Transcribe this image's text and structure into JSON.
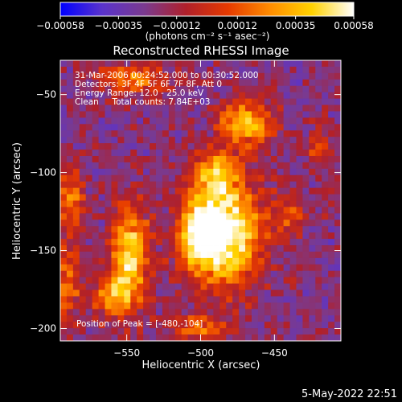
{
  "chart_data": {
    "type": "heatmap",
    "title": "Reconstructed RHESSI Image",
    "xlabel": "Heliocentric X (arcsec)",
    "ylabel": "Heliocentric Y (arcsec)",
    "xlim": [
      -595,
      -405
    ],
    "ylim": [
      -208,
      -28
    ],
    "x_ticks": [
      -550,
      -500,
      -450
    ],
    "y_ticks": [
      -200,
      -150,
      -100,
      -50
    ],
    "colorbar": {
      "label": "(photons cm⁻² s⁻¹ asec⁻²)",
      "range": [
        -0.00058,
        0.00058
      ],
      "tick_labels": [
        "−0.00058",
        "−0.00035",
        "−0.00012",
        "0.00012",
        "0.00035",
        "0.00058"
      ],
      "tick_values": [
        -0.00058,
        -0.00035,
        -0.00012,
        0.00012,
        0.00035,
        0.00058
      ],
      "colormap": [
        "#0000ff",
        "#5a33cc",
        "#7a3a8f",
        "#b0202a",
        "#e63a00",
        "#ff8c00",
        "#ffd200",
        "#ffffff"
      ]
    },
    "annotations": [
      "31-Mar-2006 00:24:52.000 to 00:30:52.000",
      "Detectors: 3F 4F 5F 6F 7F 8F, Att 0",
      "Energy Range: 12.0 - 25.0 keV",
      "Clean     Total counts: 7.84E+03"
    ],
    "peak_label": "Position of Peak = [-480,-104]",
    "peak": [
      -480,
      -104
    ],
    "sources": [
      {
        "x": -482,
        "y": -138,
        "amp": 1.0,
        "sx": 16,
        "sy": 24
      },
      {
        "x": -502,
        "y": -140,
        "amp": 0.85,
        "sx": 10,
        "sy": 16
      },
      {
        "x": -470,
        "y": -68,
        "amp": 0.75,
        "sx": 12,
        "sy": 10
      },
      {
        "x": -548,
        "y": -152,
        "amp": 0.8,
        "sx": 9,
        "sy": 22
      },
      {
        "x": -560,
        "y": -178,
        "amp": 0.6,
        "sx": 9,
        "sy": 10
      },
      {
        "x": -490,
        "y": -100,
        "amp": 0.55,
        "sx": 10,
        "sy": 9
      },
      {
        "x": -588,
        "y": -118,
        "amp": 0.55,
        "sx": 6,
        "sy": 14
      },
      {
        "x": -590,
        "y": -170,
        "amp": 0.5,
        "sx": 6,
        "sy": 18
      },
      {
        "x": -545,
        "y": -40,
        "amp": 0.5,
        "sx": 16,
        "sy": 7
      },
      {
        "x": -500,
        "y": -200,
        "amp": 0.45,
        "sx": 14,
        "sy": 6
      },
      {
        "x": -440,
        "y": -128,
        "amp": 0.35,
        "sx": 8,
        "sy": 10
      },
      {
        "x": -420,
        "y": -85,
        "amp": 0.3,
        "sx": 6,
        "sy": 10
      }
    ]
  },
  "footer": {
    "date": "5-May-2022 22:51"
  }
}
